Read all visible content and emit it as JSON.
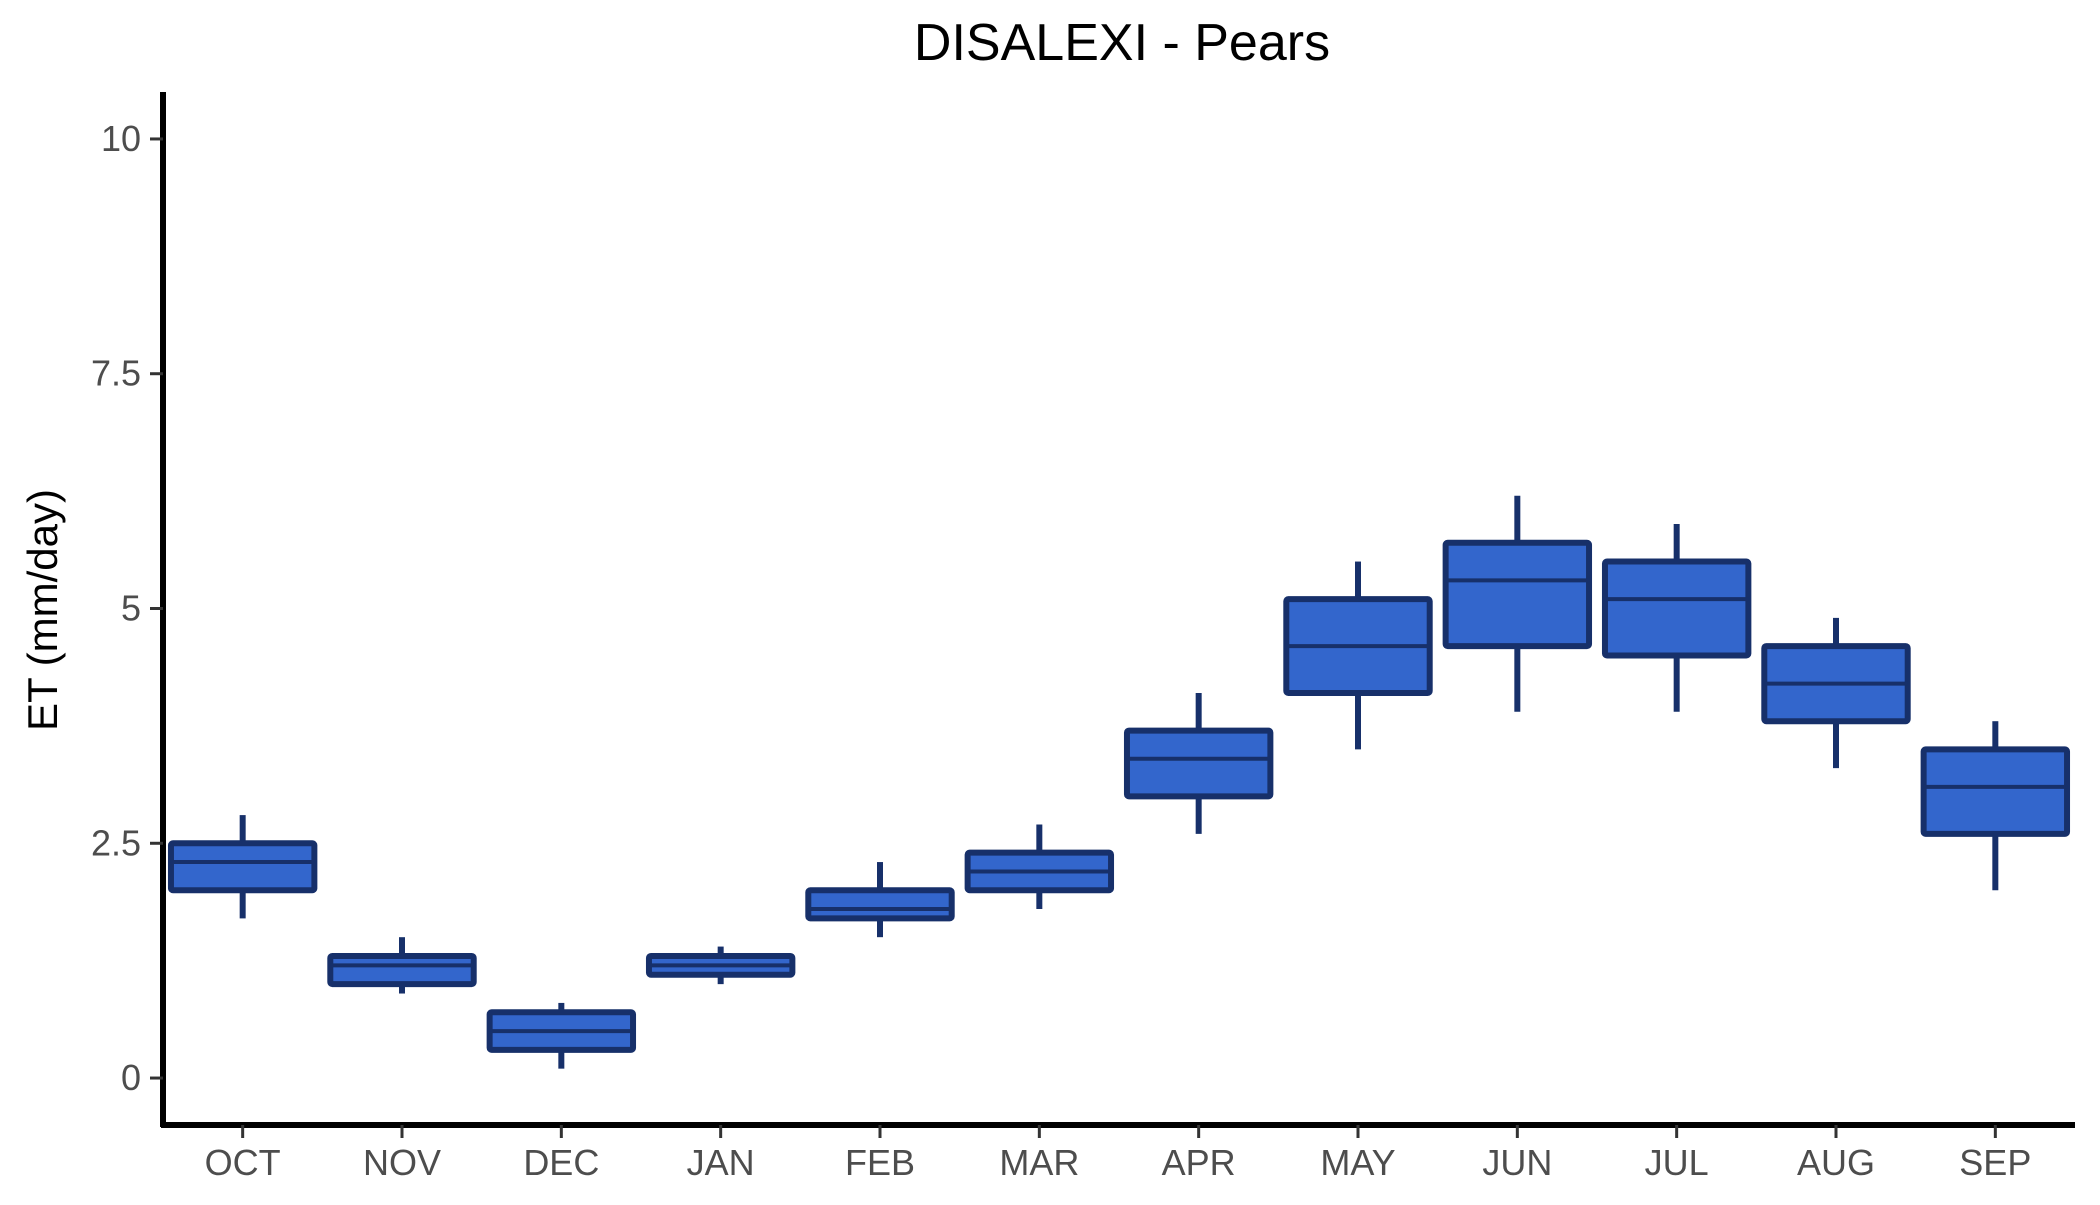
{
  "chart_data": {
    "type": "box",
    "title": "DISALEXI - Pears",
    "xlabel": "",
    "ylabel": "ET (mm/day)",
    "ylim": [
      -0.5,
      10.5
    ],
    "yticks": [
      0,
      2.5,
      5,
      7.5,
      10
    ],
    "ytick_labels": [
      "0",
      "2.5",
      "5",
      "7.5",
      "10"
    ],
    "categories": [
      "OCT",
      "NOV",
      "DEC",
      "JAN",
      "FEB",
      "MAR",
      "APR",
      "MAY",
      "JUN",
      "JUL",
      "AUG",
      "SEP"
    ],
    "boxes": [
      {
        "min": 1.7,
        "q1": 2.0,
        "median": 2.3,
        "q3": 2.5,
        "max": 2.8
      },
      {
        "min": 0.9,
        "q1": 1.0,
        "median": 1.2,
        "q3": 1.3,
        "max": 1.5
      },
      {
        "min": 0.1,
        "q1": 0.3,
        "median": 0.5,
        "q3": 0.7,
        "max": 0.8
      },
      {
        "min": 1.0,
        "q1": 1.1,
        "median": 1.2,
        "q3": 1.3,
        "max": 1.4
      },
      {
        "min": 1.5,
        "q1": 1.7,
        "median": 1.8,
        "q3": 2.0,
        "max": 2.3
      },
      {
        "min": 1.8,
        "q1": 2.0,
        "median": 2.2,
        "q3": 2.4,
        "max": 2.7
      },
      {
        "min": 2.6,
        "q1": 3.0,
        "median": 3.4,
        "q3": 3.7,
        "max": 4.1
      },
      {
        "min": 3.5,
        "q1": 4.1,
        "median": 4.6,
        "q3": 5.1,
        "max": 5.5
      },
      {
        "min": 3.9,
        "q1": 4.6,
        "median": 5.3,
        "q3": 5.7,
        "max": 6.2
      },
      {
        "min": 3.9,
        "q1": 4.5,
        "median": 5.1,
        "q3": 5.5,
        "max": 5.9
      },
      {
        "min": 3.3,
        "q1": 3.8,
        "median": 4.2,
        "q3": 4.6,
        "max": 4.9
      },
      {
        "min": 2.0,
        "q1": 2.6,
        "median": 3.1,
        "q3": 3.5,
        "max": 3.8
      }
    ],
    "colors": {
      "box_fill": "#3366cc",
      "box_stroke": "#17306a",
      "axis": "#000000",
      "tick_text": "#4d4d4d"
    },
    "grid": false,
    "legend": "none"
  }
}
